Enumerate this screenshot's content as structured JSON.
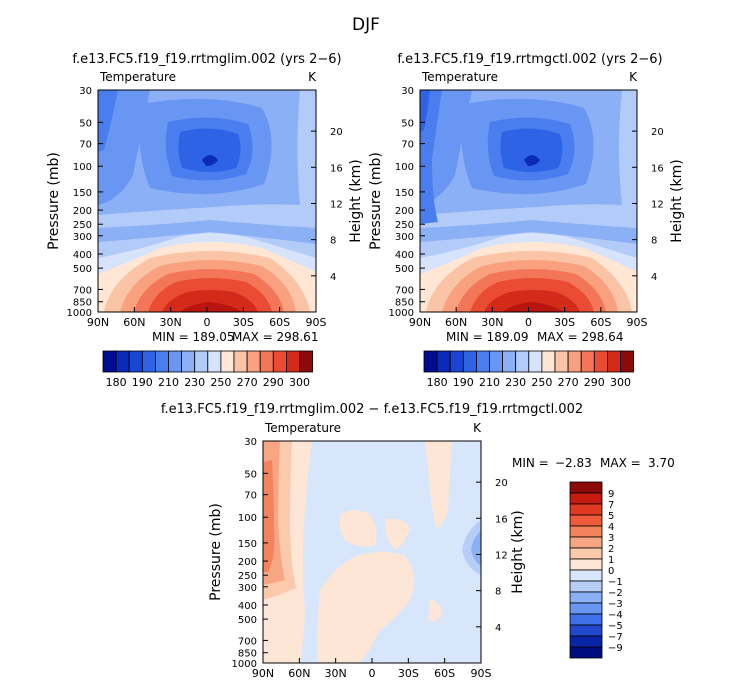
{
  "chart_data": {
    "title": "DJF",
    "panels": [
      {
        "id": "ctl_lim",
        "type": "contour",
        "title": "f.e13.FC5.f19_f19.rrtmglim.002 (yrs 2−6)",
        "left_label": "Temperature",
        "units": "K",
        "ylabel": "Pressure (mb)",
        "ylabel_right": "Height (km)",
        "x_ticks": [
          "90N",
          "60N",
          "30N",
          "0",
          "30S",
          "60S",
          "90S"
        ],
        "y_ticks": [
          30,
          50,
          70,
          100,
          150,
          200,
          250,
          300,
          400,
          500,
          700,
          850,
          1000
        ],
        "height_ticks": [
          20,
          16,
          12,
          8,
          4
        ],
        "min_text": "MIN = 189.05",
        "max_text": "MAX = 298.61",
        "min": 189.05,
        "max": 298.61
      },
      {
        "id": "ctl",
        "type": "contour",
        "title": "f.e13.FC5.f19_f19.rrtmgctl.002 (yrs 2−6)",
        "left_label": "Temperature",
        "units": "K",
        "ylabel": "Pressure (mb)",
        "ylabel_right": "Height (km)",
        "x_ticks": [
          "90N",
          "60N",
          "30N",
          "0",
          "30S",
          "60S",
          "90S"
        ],
        "y_ticks": [
          30,
          50,
          70,
          100,
          150,
          200,
          250,
          300,
          400,
          500,
          700,
          850,
          1000
        ],
        "height_ticks": [
          20,
          16,
          12,
          8,
          4
        ],
        "min_text": "MIN = 189.09",
        "max_text": "MAX = 298.64",
        "min": 189.09,
        "max": 298.64
      },
      {
        "id": "diff",
        "type": "contour",
        "title": "f.e13.FC5.f19_f19.rrtmglim.002 − f.e13.FC5.f19_f19.rrtmgctl.002",
        "left_label": "Temperature",
        "units": "K",
        "ylabel": "Pressure (mb)",
        "ylabel_right": "Height (km)",
        "x_ticks": [
          "90N",
          "60N",
          "30N",
          "0",
          "30S",
          "60S",
          "90S"
        ],
        "y_ticks": [
          30,
          50,
          70,
          100,
          150,
          200,
          250,
          300,
          400,
          500,
          700,
          850,
          1000
        ],
        "height_ticks": [
          20,
          16,
          12,
          8,
          4
        ],
        "min_text": "MIN =",
        "min_value": "−2.83",
        "max_text": "MAX =",
        "max_value": "3.70",
        "min": -2.83,
        "max": 3.7
      }
    ],
    "colorbar_abs": {
      "levels": [
        180,
        185,
        190,
        200,
        210,
        220,
        230,
        240,
        250,
        260,
        270,
        280,
        290,
        300
      ],
      "labels": [
        "180",
        "190",
        "210",
        "230",
        "250",
        "270",
        "290",
        "300"
      ],
      "colors": [
        "#000d91",
        "#0a2ab8",
        "#1945d4",
        "#2f63e6",
        "#4a7eef",
        "#6996f3",
        "#8cb0f6",
        "#b3cbf8",
        "#d6e3fa",
        "#ffe6d5",
        "#fcc4a6",
        "#f9a07e",
        "#f27657",
        "#e94c33",
        "#d42a1a",
        "#8b0a0a"
      ]
    },
    "colorbar_diff": {
      "labels": [
        "9",
        "7",
        "5",
        "4",
        "3",
        "2",
        "1",
        "0",
        "−1",
        "−2",
        "−3",
        "−4",
        "−5",
        "−7",
        "−9"
      ],
      "colors": [
        "#8b0a0a",
        "#c71a10",
        "#e23a22",
        "#ee5a3a",
        "#f3825d",
        "#f7a583",
        "#fbc9ac",
        "#fde6d6",
        "#d8e6fb",
        "#b6cdf8",
        "#8cb0f6",
        "#6996f3",
        "#3f70ea",
        "#2148cf",
        "#0a24a8",
        "#000d80"
      ]
    }
  }
}
